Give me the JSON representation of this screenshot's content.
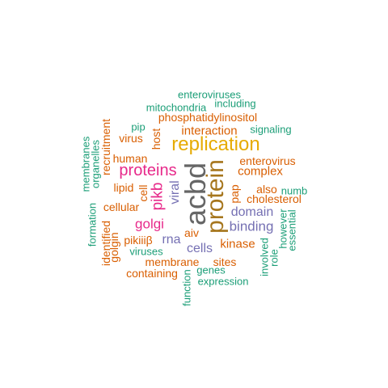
{
  "palette": {
    "green": "#1b9e77",
    "orange": "#d95f02",
    "purple": "#7570b3",
    "magenta": "#e7298a",
    "gold": "#e6ab02",
    "brown": "#a6761d",
    "gray": "#666666"
  },
  "words": [
    {
      "text": "acbd",
      "color": "gray"
    },
    {
      "text": "protein",
      "color": "brown"
    },
    {
      "text": "replication",
      "color": "gold"
    },
    {
      "text": "proteins",
      "color": "magenta"
    },
    {
      "text": "pikb",
      "color": "magenta"
    },
    {
      "text": "golgi",
      "color": "magenta"
    },
    {
      "text": "viral",
      "color": "purple"
    },
    {
      "text": "binding",
      "color": "purple"
    },
    {
      "text": "domain",
      "color": "purple"
    },
    {
      "text": "rna",
      "color": "purple"
    },
    {
      "text": "cells",
      "color": "purple"
    },
    {
      "text": "interaction",
      "color": "orange"
    },
    {
      "text": "complex",
      "color": "orange"
    },
    {
      "text": "enterovirus",
      "color": "orange"
    },
    {
      "text": "kinase",
      "color": "orange"
    },
    {
      "text": "membrane",
      "color": "orange"
    },
    {
      "text": "sites",
      "color": "orange"
    },
    {
      "text": "phosphatidylinositol",
      "color": "orange"
    },
    {
      "text": "human",
      "color": "orange"
    },
    {
      "text": "cholesterol",
      "color": "orange"
    },
    {
      "text": "also",
      "color": "orange"
    },
    {
      "text": "pap",
      "color": "orange"
    },
    {
      "text": "host",
      "color": "orange"
    },
    {
      "text": "cell",
      "color": "orange"
    },
    {
      "text": "cellular",
      "color": "orange"
    },
    {
      "text": "lipid",
      "color": "orange"
    },
    {
      "text": "virus",
      "color": "orange"
    },
    {
      "text": "recruitment",
      "color": "orange"
    },
    {
      "text": "pikiiiβ",
      "color": "orange"
    },
    {
      "text": "aiv",
      "color": "orange"
    },
    {
      "text": "containing",
      "color": "orange"
    },
    {
      "text": "identified",
      "color": "orange"
    },
    {
      "text": "golgin",
      "color": "orange"
    },
    {
      "text": "enteroviruses",
      "color": "green"
    },
    {
      "text": "including",
      "color": "green"
    },
    {
      "text": "mitochondria",
      "color": "green"
    },
    {
      "text": "signaling",
      "color": "green"
    },
    {
      "text": "pip",
      "color": "green"
    },
    {
      "text": "membranes",
      "color": "green"
    },
    {
      "text": "organelles",
      "color": "green"
    },
    {
      "text": "formation",
      "color": "green"
    },
    {
      "text": "numb",
      "color": "green"
    },
    {
      "text": "however",
      "color": "green"
    },
    {
      "text": "essential",
      "color": "green"
    },
    {
      "text": "role",
      "color": "green"
    },
    {
      "text": "involved",
      "color": "green"
    },
    {
      "text": "viruses",
      "color": "green"
    },
    {
      "text": "genes",
      "color": "green"
    },
    {
      "text": "expression",
      "color": "green"
    },
    {
      "text": "function",
      "color": "green"
    }
  ]
}
